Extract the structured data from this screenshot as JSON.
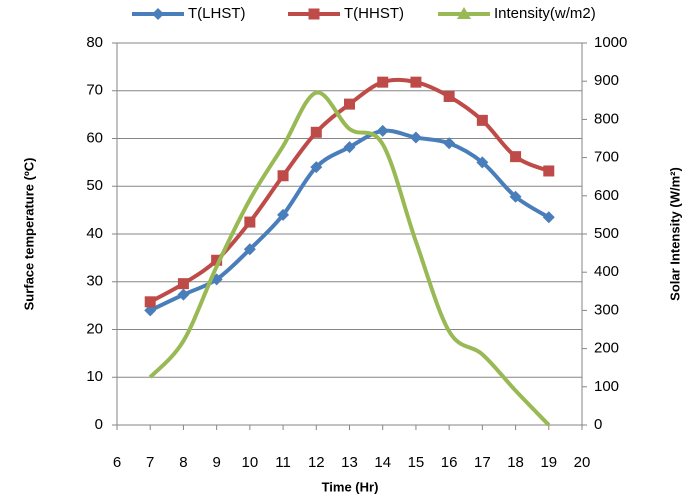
{
  "chart_data": {
    "type": "line",
    "x_label": "Time (Hr)",
    "y_label": "Surface temperature (ºC)",
    "y2_label": "Solar Intensity (W/m²)",
    "x": [
      7,
      8,
      9,
      10,
      11,
      12,
      13,
      14,
      15,
      16,
      17,
      18,
      19
    ],
    "xlim": [
      6,
      20
    ],
    "xticks": [
      6,
      7,
      8,
      9,
      10,
      11,
      12,
      13,
      14,
      15,
      16,
      17,
      18,
      19,
      20
    ],
    "ylim": [
      0,
      80
    ],
    "yticks": [
      0,
      10,
      20,
      30,
      40,
      50,
      60,
      70,
      80
    ],
    "y2lim": [
      0,
      1000
    ],
    "y2ticks": [
      0,
      100,
      200,
      300,
      400,
      500,
      600,
      700,
      800,
      900,
      1000
    ],
    "grid": true,
    "legend": "top",
    "smooth": true,
    "series": [
      {
        "name": "T(LHST)",
        "color": "#4a7ebb",
        "marker": "diamond",
        "values": [
          24,
          27.3,
          30.5,
          36.8,
          44,
          54,
          58.2,
          61.6,
          60.2,
          59,
          55,
          47.8,
          43.5
        ]
      },
      {
        "name": "T(HHST)",
        "color": "#be4b48",
        "marker": "square",
        "values": [
          25.8,
          29.6,
          34.5,
          42.5,
          52.2,
          61.3,
          67.2,
          71.8,
          71.8,
          68.8,
          63.8,
          56.2,
          53.2
        ]
      },
      {
        "name": "Intensity(w/m2)",
        "color": "#98b954",
        "marker": "triangle",
        "axis": "y2",
        "values": [
          125,
          220,
          415,
          590,
          730,
          870,
          775,
          735,
          480,
          245,
          185,
          90,
          0
        ]
      }
    ]
  }
}
